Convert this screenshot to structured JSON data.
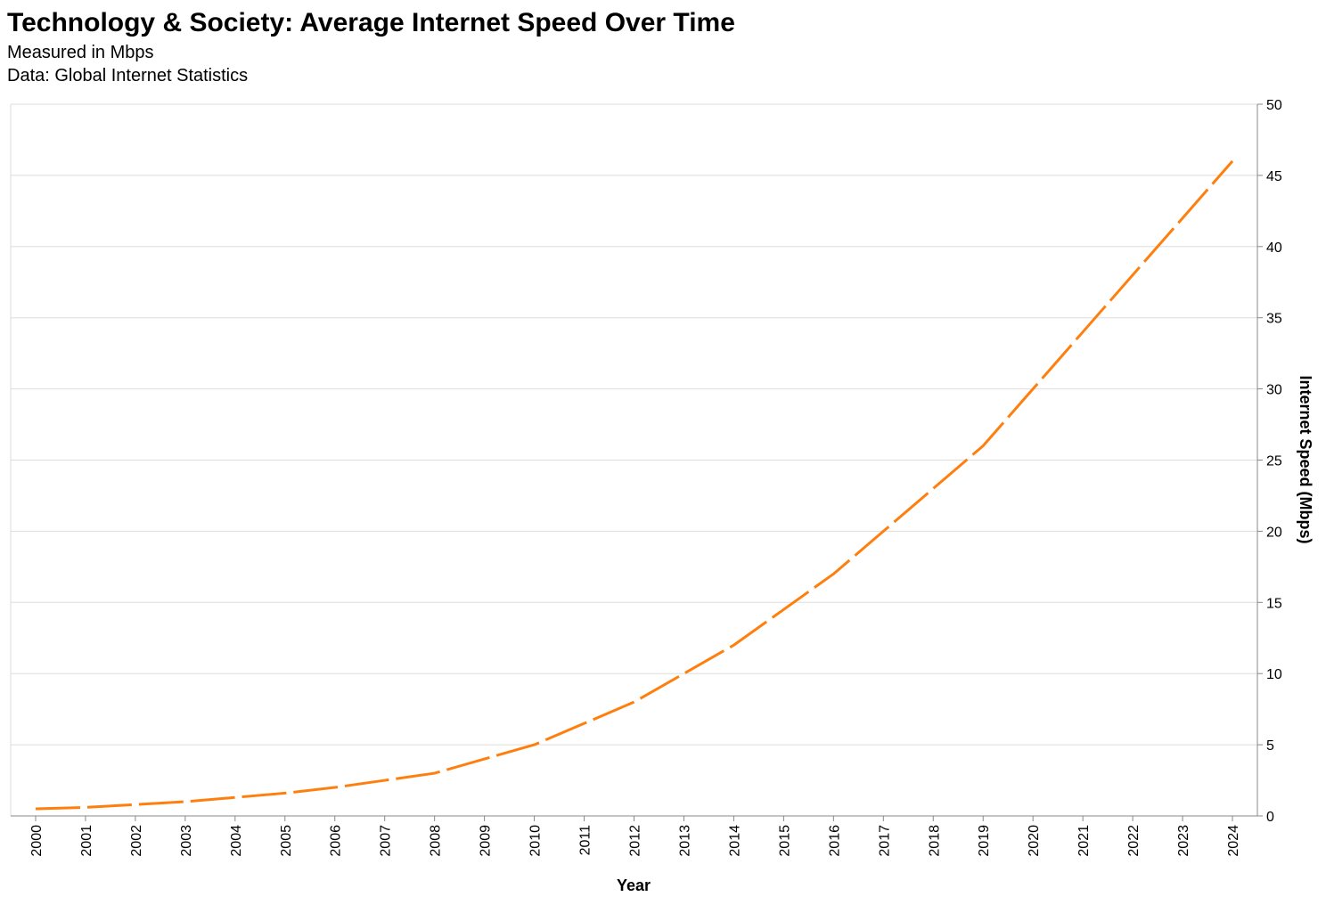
{
  "chart_data": {
    "type": "line",
    "title": "Technology & Society: Average Internet Speed Over Time",
    "subtitle": [
      "Measured in Mbps",
      "Data: Global Internet Statistics"
    ],
    "xlabel": "Year",
    "ylabel": "Internet Speed (Mbps)",
    "x": [
      "2000",
      "2001",
      "2002",
      "2003",
      "2004",
      "2005",
      "2006",
      "2007",
      "2008",
      "2009",
      "2010",
      "2011",
      "2012",
      "2013",
      "2014",
      "2015",
      "2016",
      "2017",
      "2018",
      "2019",
      "2020",
      "2021",
      "2022",
      "2023",
      "2024"
    ],
    "values": [
      0.5,
      0.6,
      0.8,
      1.0,
      1.3,
      1.6,
      2.0,
      2.5,
      3.0,
      4.0,
      5.0,
      6.5,
      8.0,
      10.0,
      12.0,
      14.5,
      17.0,
      20.0,
      23.0,
      26.0,
      30.0,
      34.0,
      38.0,
      42.0,
      46.0
    ],
    "ylim": [
      0,
      50
    ],
    "yticks": [
      0,
      5,
      10,
      15,
      20,
      25,
      30,
      35,
      40,
      45,
      50
    ],
    "y_axis_position": "right",
    "grid": true,
    "line_style": "dashed",
    "line_color": "#ff7f0e"
  }
}
